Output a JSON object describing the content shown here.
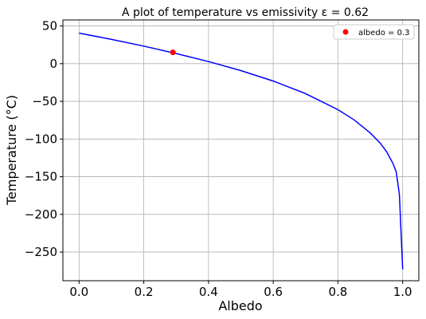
{
  "chart_data": {
    "type": "line",
    "title": "A plot of temperature vs emissivity ε = 0.62",
    "xlabel": "Albedo",
    "ylabel": "Temperature (°C)",
    "xlim": [
      -0.05,
      1.05
    ],
    "ylim": [
      -288,
      58
    ],
    "xticks": [
      0.0,
      0.2,
      0.4,
      0.6,
      0.8,
      1.0
    ],
    "xtick_labels": [
      "0.0",
      "0.2",
      "0.4",
      "0.6",
      "0.8",
      "1.0"
    ],
    "yticks": [
      50,
      0,
      -50,
      -100,
      -150,
      -200,
      -250
    ],
    "ytick_labels": [
      "50",
      "0",
      "−50",
      "−100",
      "−150",
      "−200",
      "−250"
    ],
    "grid": true,
    "legend_position": "top-right",
    "emissivity": 0.62,
    "series": [
      {
        "type": "line",
        "color": "#0000ff",
        "x": [
          0.0,
          0.1,
          0.2,
          0.3,
          0.4,
          0.5,
          0.6,
          0.7,
          0.8,
          0.85,
          0.9,
          0.93,
          0.95,
          0.97,
          0.98,
          0.99,
          1.0
        ],
        "y": [
          40.5,
          32.2,
          23.3,
          13.5,
          2.8,
          -9.2,
          -23.1,
          -39.8,
          -61.0,
          -74.6,
          -91.9,
          -105.1,
          -116.6,
          -132.4,
          -143.7,
          -173.6,
          -273.0
        ]
      },
      {
        "type": "scatter",
        "name": "albedo = 0.3",
        "color": "#ff0000",
        "x": [
          0.29
        ],
        "y": [
          15.0
        ]
      }
    ]
  }
}
